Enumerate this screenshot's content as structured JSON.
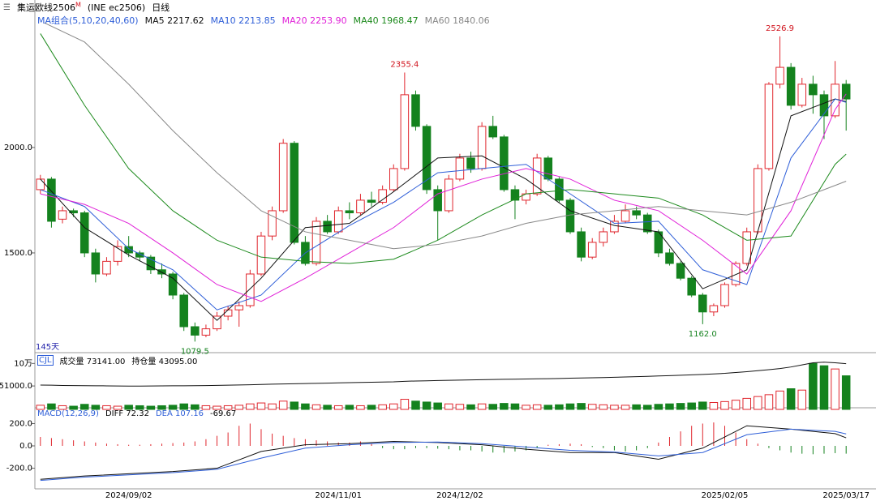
{
  "header": {
    "title": "集运欧线2506",
    "superscript": "M",
    "code": "(INE ec2506)",
    "period": "日线"
  },
  "chart_data": {
    "type": "candlestick",
    "ylim": [
      1027,
      2584
    ],
    "yticks": [
      {
        "value": 2000,
        "label": "2000.0"
      },
      {
        "value": 1500,
        "label": "1500.0"
      }
    ],
    "up_color": "#e0262d",
    "down_color": "#14821e",
    "days_label": "145天",
    "categories": [
      null,
      null,
      null,
      null,
      null,
      null,
      null,
      null,
      "2024/09/02",
      null,
      null,
      null,
      null,
      null,
      null,
      null,
      null,
      null,
      null,
      null,
      null,
      null,
      null,
      null,
      null,
      null,
      null,
      "2024/11/01",
      null,
      null,
      null,
      null,
      null,
      null,
      null,
      null,
      null,
      null,
      "2024/12/02",
      null,
      null,
      null,
      null,
      null,
      null,
      null,
      null,
      null,
      null,
      null,
      null,
      null,
      null,
      null,
      null,
      null,
      null,
      null,
      null,
      null,
      null,
      null,
      "2025/02/05",
      null,
      null,
      null,
      null,
      null,
      null,
      null,
      null,
      null,
      null,
      "2025/03/17"
    ],
    "ohlc": [
      [
        1800,
        1870,
        1780,
        1850
      ],
      [
        1850,
        1860,
        1620,
        1650
      ],
      [
        1660,
        1720,
        1640,
        1700
      ],
      [
        1700,
        1710,
        1670,
        1690
      ],
      [
        1690,
        1700,
        1480,
        1500
      ],
      [
        1500,
        1520,
        1360,
        1400
      ],
      [
        1400,
        1480,
        1390,
        1460
      ],
      [
        1460,
        1560,
        1440,
        1530
      ],
      [
        1530,
        1580,
        1480,
        1500
      ],
      [
        1500,
        1510,
        1460,
        1480
      ],
      [
        1480,
        1490,
        1400,
        1420
      ],
      [
        1420,
        1450,
        1380,
        1400
      ],
      [
        1400,
        1410,
        1280,
        1300
      ],
      [
        1300,
        1310,
        1130,
        1150
      ],
      [
        1150,
        1170,
        1079.5,
        1110
      ],
      [
        1110,
        1160,
        1100,
        1140
      ],
      [
        1140,
        1220,
        1130,
        1200
      ],
      [
        1200,
        1250,
        1180,
        1230
      ],
      [
        1230,
        1270,
        1150,
        1250
      ],
      [
        1250,
        1420,
        1240,
        1400
      ],
      [
        1400,
        1600,
        1390,
        1580
      ],
      [
        1580,
        1720,
        1560,
        1700
      ],
      [
        1700,
        2040,
        1690,
        2020
      ],
      [
        2020,
        2030,
        1540,
        1550
      ],
      [
        1550,
        1580,
        1440,
        1450
      ],
      [
        1450,
        1670,
        1440,
        1650
      ],
      [
        1650,
        1680,
        1590,
        1600
      ],
      [
        1600,
        1720,
        1590,
        1700
      ],
      [
        1700,
        1740,
        1660,
        1690
      ],
      [
        1690,
        1780,
        1680,
        1750
      ],
      [
        1750,
        1790,
        1720,
        1740
      ],
      [
        1740,
        1820,
        1730,
        1800
      ],
      [
        1800,
        1920,
        1790,
        1900
      ],
      [
        1900,
        2355.4,
        1890,
        2250
      ],
      [
        2250,
        2270,
        2080,
        2100
      ],
      [
        2100,
        2110,
        1780,
        1800
      ],
      [
        1800,
        1820,
        1560,
        1700
      ],
      [
        1700,
        1870,
        1690,
        1850
      ],
      [
        1850,
        1970,
        1840,
        1950
      ],
      [
        1950,
        1980,
        1880,
        1900
      ],
      [
        1900,
        2120,
        1890,
        2100
      ],
      [
        2100,
        2150,
        2040,
        2050
      ],
      [
        2050,
        2060,
        1790,
        1800
      ],
      [
        1800,
        1820,
        1660,
        1750
      ],
      [
        1750,
        1800,
        1730,
        1780
      ],
      [
        1780,
        1970,
        1770,
        1950
      ],
      [
        1950,
        1960,
        1840,
        1850
      ],
      [
        1850,
        1860,
        1740,
        1750
      ],
      [
        1750,
        1760,
        1590,
        1600
      ],
      [
        1600,
        1620,
        1460,
        1480
      ],
      [
        1480,
        1570,
        1470,
        1550
      ],
      [
        1550,
        1620,
        1530,
        1600
      ],
      [
        1600,
        1680,
        1590,
        1650
      ],
      [
        1650,
        1730,
        1640,
        1700
      ],
      [
        1700,
        1720,
        1660,
        1680
      ],
      [
        1680,
        1690,
        1590,
        1600
      ],
      [
        1600,
        1610,
        1480,
        1500
      ],
      [
        1500,
        1520,
        1440,
        1450
      ],
      [
        1450,
        1460,
        1370,
        1380
      ],
      [
        1380,
        1390,
        1290,
        1300
      ],
      [
        1300,
        1310,
        1162,
        1220
      ],
      [
        1220,
        1260,
        1200,
        1250
      ],
      [
        1250,
        1360,
        1240,
        1350
      ],
      [
        1350,
        1460,
        1340,
        1450
      ],
      [
        1450,
        1620,
        1440,
        1600
      ],
      [
        1600,
        1920,
        1590,
        1900
      ],
      [
        1900,
        2310,
        1890,
        2300
      ],
      [
        2300,
        2526.9,
        2280,
        2380
      ],
      [
        2380,
        2400,
        2180,
        2200
      ],
      [
        2200,
        2330,
        2190,
        2300
      ],
      [
        2300,
        2340,
        2160,
        2250
      ],
      [
        2250,
        2270,
        2040,
        2150
      ],
      [
        2150,
        2410,
        2140,
        2300
      ],
      [
        2300,
        2320,
        2080,
        2230
      ]
    ],
    "annotations": [
      {
        "index": 33,
        "value": 2355.4,
        "label": "2355.4",
        "color": "#d0101a",
        "side": "high"
      },
      {
        "index": 67,
        "value": 2526.9,
        "label": "2526.9",
        "color": "#d0101a",
        "side": "high"
      },
      {
        "index": 14,
        "value": 1079.5,
        "label": "1079.5",
        "color": "#14821e",
        "side": "low"
      },
      {
        "index": 60,
        "value": 1162,
        "label": "1162.0",
        "color": "#14821e",
        "side": "low"
      }
    ],
    "ma": {
      "title": "MA组合(5,10,20,40,60)",
      "index": [
        0,
        4,
        8,
        12,
        16,
        20,
        24,
        28,
        32,
        36,
        40,
        44,
        48,
        52,
        56,
        60,
        64,
        68,
        72,
        73
      ],
      "series": [
        {
          "name": "MA5",
          "color": "#111111",
          "last_label": "2217.62",
          "values": [
            1850,
            1620,
            1490,
            1380,
            1180,
            1380,
            1620,
            1640,
            1790,
            1950,
            1960,
            1850,
            1700,
            1630,
            1600,
            1330,
            1420,
            2150,
            2230,
            2217.62
          ]
        },
        {
          "name": "MA10",
          "color": "#2f5fd8",
          "last_label": "2213.85",
          "values": [
            1800,
            1720,
            1520,
            1420,
            1230,
            1300,
            1500,
            1630,
            1740,
            1880,
            1900,
            1920,
            1780,
            1640,
            1650,
            1420,
            1350,
            1950,
            2230,
            2213.85
          ]
        },
        {
          "name": "MA20",
          "color": "#e020d8",
          "last_label": "2253.90",
          "values": [
            1780,
            1730,
            1640,
            1500,
            1350,
            1270,
            1380,
            1500,
            1620,
            1780,
            1850,
            1900,
            1850,
            1750,
            1700,
            1560,
            1400,
            1700,
            2180,
            2253.9
          ]
        },
        {
          "name": "MA40",
          "color": "#1d8a1d",
          "last_label": "1968.47",
          "values": [
            2540,
            2200,
            1900,
            1700,
            1560,
            1480,
            1460,
            1450,
            1470,
            1560,
            1680,
            1780,
            1800,
            1780,
            1760,
            1680,
            1560,
            1580,
            1920,
            1968.47
          ]
        },
        {
          "name": "MA60",
          "color": "#888888",
          "last_label": "1840.06",
          "values": [
            2600,
            2500,
            2300,
            2080,
            1880,
            1700,
            1600,
            1560,
            1520,
            1540,
            1580,
            1640,
            1680,
            1700,
            1720,
            1700,
            1680,
            1740,
            1820,
            1840.06
          ]
        }
      ]
    },
    "volume_title": "CJL",
    "volume_ylim": [
      0,
      120000
    ],
    "volume_yticks": [
      {
        "value": 100000,
        "label": "10万"
      },
      {
        "value": 51000,
        "label": "51000.0"
      }
    ],
    "volume": {
      "name": "成交量",
      "last_label": "73141.00",
      "values": [
        9000,
        12000,
        8000,
        7000,
        11000,
        9000,
        8000,
        7000,
        9000,
        8000,
        7000,
        8000,
        9000,
        12000,
        10000,
        8000,
        7000,
        8000,
        9000,
        12000,
        14000,
        12000,
        18000,
        16000,
        12000,
        10000,
        9000,
        8000,
        9000,
        8000,
        9000,
        10000,
        12000,
        22000,
        18000,
        16000,
        14000,
        12000,
        11000,
        10000,
        12000,
        11000,
        13000,
        12000,
        9000,
        10000,
        9000,
        10000,
        12000,
        13000,
        11000,
        10000,
        9000,
        9000,
        10000,
        9000,
        11000,
        12000,
        13000,
        14000,
        16000,
        15000,
        17000,
        20000,
        24000,
        28000,
        32000,
        40000,
        45000,
        42000,
        100000,
        95000,
        88000,
        73141
      ]
    },
    "oi_ylim": [
      0,
      52000
    ],
    "open_interest": {
      "name": "持仓量",
      "last_label": "43095.00",
      "color": "#111111",
      "values": [
        22900,
        22800,
        22600,
        22500,
        22400,
        22300,
        22200,
        22100,
        22000,
        22000,
        22100,
        22200,
        22300,
        22300,
        22400,
        22500,
        22700,
        22800,
        23000,
        23200,
        23500,
        23800,
        24000,
        24200,
        24400,
        24600,
        24800,
        25000,
        25200,
        25400,
        25600,
        25800,
        26000,
        26500,
        26800,
        27000,
        27200,
        27400,
        27600,
        27800,
        28000,
        28200,
        28400,
        28500,
        28700,
        28900,
        29000,
        29200,
        29400,
        29600,
        29800,
        30000,
        30300,
        30600,
        30900,
        31200,
        31500,
        31800,
        32200,
        32600,
        33000,
        33500,
        34000,
        34800,
        35600,
        36500,
        37500,
        38500,
        40000,
        42000,
        44000,
        44500,
        44000,
        43095
      ]
    },
    "macd": {
      "title": "MACD(12,26,9)",
      "ylim": [
        -385,
        327
      ],
      "yticks": [
        {
          "value": 200,
          "label": "200.0"
        },
        {
          "value": 0,
          "label": "0.0"
        },
        {
          "value": -200,
          "label": "-200.0"
        }
      ],
      "index": [
        0,
        4,
        8,
        12,
        16,
        20,
        24,
        28,
        32,
        36,
        40,
        44,
        48,
        52,
        56,
        60,
        64,
        68,
        72,
        73
      ],
      "diff": {
        "name": "DIFF",
        "color": "#111111",
        "last_label": "72.32",
        "values": [
          -300,
          -270,
          -250,
          -230,
          -200,
          -50,
          10,
          20,
          40,
          30,
          10,
          -30,
          -60,
          -60,
          -120,
          -20,
          180,
          150,
          110,
          72.32
        ]
      },
      "dea": {
        "name": "DEA",
        "color": "#2f5fd8",
        "last_label": "107.16",
        "values": [
          -310,
          -280,
          -260,
          -240,
          -210,
          -110,
          -20,
          10,
          30,
          35,
          20,
          -10,
          -40,
          -55,
          -90,
          -60,
          100,
          150,
          130,
          107.16
        ]
      },
      "hist": {
        "last_label": "-69.67",
        "values": [
          80,
          70,
          60,
          50,
          40,
          30,
          20,
          15,
          10,
          10,
          15,
          20,
          25,
          30,
          40,
          60,
          90,
          120,
          180,
          200,
          150,
          110,
          90,
          70,
          60,
          50,
          40,
          30,
          30,
          40,
          20,
          -20,
          -30,
          -30,
          -20,
          -20,
          -25,
          -30,
          -40,
          -40,
          -50,
          -60,
          -60,
          -50,
          -40,
          -20,
          10,
          15,
          20,
          15,
          -10,
          -20,
          -40,
          -50,
          -40,
          -20,
          30,
          80,
          130,
          180,
          200,
          210,
          180,
          120,
          60,
          20,
          -20,
          -40,
          -60,
          -70,
          -75,
          -70,
          -65,
          -69.67
        ]
      }
    }
  }
}
